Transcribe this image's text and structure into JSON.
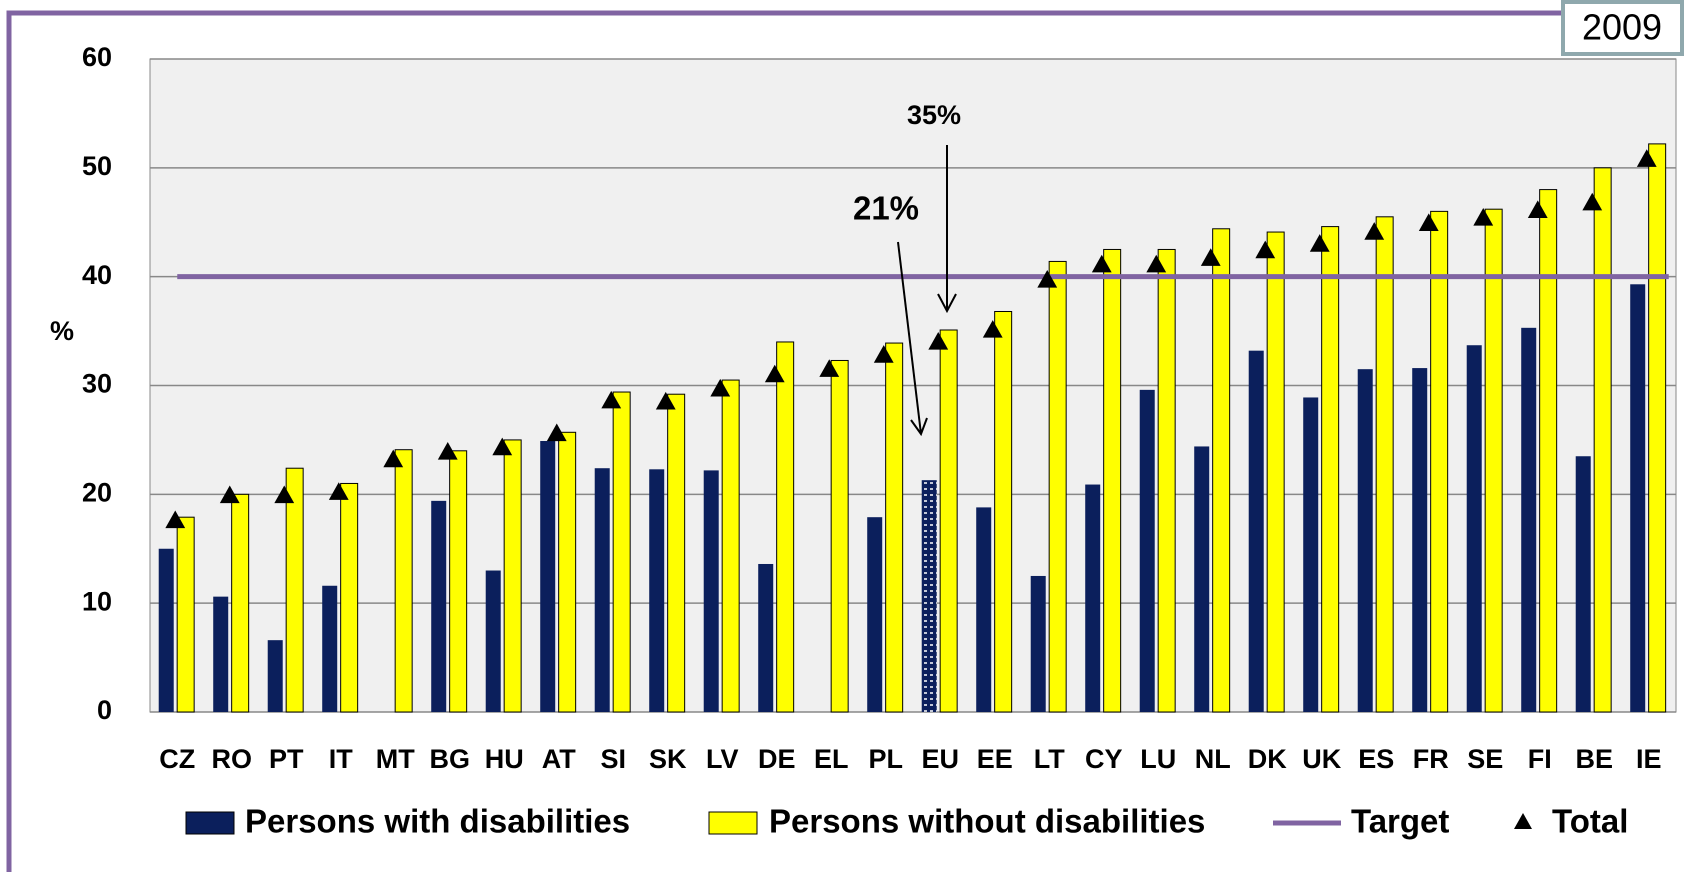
{
  "chart_data": {
    "type": "bar",
    "y_label": "%",
    "year_label": "2009",
    "annotations": [
      {
        "text": "35%"
      },
      {
        "text": "21%"
      }
    ],
    "categories": [
      "CZ",
      "RO",
      "PT",
      "IT",
      "MT",
      "BG",
      "HU",
      "AT",
      "SI",
      "SK",
      "LV",
      "DE",
      "EL",
      "PL",
      "EU",
      "EE",
      "LT",
      "CY",
      "LU",
      "NL",
      "DK",
      "UK",
      "ES",
      "FR",
      "SE",
      "FI",
      "BE",
      "IE"
    ],
    "series": [
      {
        "name": "Persons with disabilities",
        "color": "#0b1f5c",
        "kind": "bar",
        "values": [
          15,
          10.6,
          6.6,
          11.6,
          null,
          19.4,
          13,
          24.9,
          22.4,
          22.3,
          22.2,
          13.6,
          null,
          17.9,
          21.3,
          18.8,
          12.5,
          20.9,
          29.6,
          24.4,
          33.2,
          28.9,
          31.5,
          31.6,
          33.7,
          35.3,
          23.5,
          39.3
        ]
      },
      {
        "name": "Persons without disabilities",
        "color": "#ffff00",
        "kind": "bar",
        "values": [
          17.9,
          20,
          22.4,
          21,
          24.1,
          24,
          25,
          25.7,
          29.4,
          29.2,
          30.5,
          34,
          32.3,
          33.9,
          35.1,
          36.8,
          41.4,
          42.5,
          42.5,
          44.4,
          44.1,
          44.6,
          45.5,
          46,
          46.2,
          48,
          50,
          52.2
        ]
      },
      {
        "name": "Target",
        "color": "#8064a2",
        "kind": "hline",
        "value": 40
      },
      {
        "name": "Total",
        "color": "#000000",
        "kind": "marker",
        "values": [
          17.5,
          19.8,
          19.8,
          20.1,
          23.1,
          23.8,
          24.2,
          25.5,
          28.5,
          28.4,
          29.6,
          30.9,
          31.4,
          32.7,
          33.9,
          35,
          39.6,
          41,
          41,
          41.6,
          42.3,
          42.9,
          44,
          44.8,
          45.3,
          46,
          46.7,
          50.7
        ]
      }
    ],
    "ylim": [
      0,
      60
    ],
    "yticks": [
      0,
      10,
      20,
      30,
      40,
      50,
      60
    ],
    "grid": true
  }
}
